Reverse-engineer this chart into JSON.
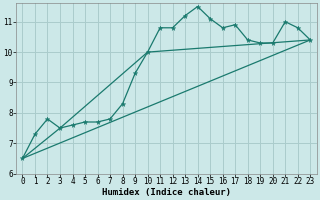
{
  "xlabel": "Humidex (Indice chaleur)",
  "ylabel": "",
  "bg_color": "#cce8e8",
  "line_color": "#1a7a6e",
  "grid_color": "#aacccc",
  "xlim": [
    -0.5,
    23.5
  ],
  "ylim": [
    6,
    11.6
  ],
  "xticks": [
    0,
    1,
    2,
    3,
    4,
    5,
    6,
    7,
    8,
    9,
    10,
    11,
    12,
    13,
    14,
    15,
    16,
    17,
    18,
    19,
    20,
    21,
    22,
    23
  ],
  "yticks": [
    6,
    7,
    8,
    9,
    10,
    11
  ],
  "series1_x": [
    0,
    1,
    2,
    3,
    4,
    5,
    6,
    7,
    8,
    9,
    10,
    11,
    12,
    13,
    14,
    15,
    16,
    17,
    18,
    19,
    20,
    21,
    22,
    23
  ],
  "series1_y": [
    6.5,
    7.3,
    7.8,
    7.5,
    7.6,
    7.7,
    7.7,
    7.8,
    8.3,
    9.3,
    10.0,
    10.8,
    10.8,
    11.2,
    11.5,
    11.1,
    10.8,
    10.9,
    10.4,
    10.3,
    10.3,
    11.0,
    10.8,
    10.4
  ],
  "series2_x": [
    0,
    23
  ],
  "series2_y": [
    6.5,
    10.4
  ],
  "series3_x": [
    0,
    3,
    10,
    23
  ],
  "series3_y": [
    6.5,
    7.5,
    10.0,
    10.4
  ],
  "tick_fontsize": 5.5,
  "xlabel_fontsize": 6.5
}
